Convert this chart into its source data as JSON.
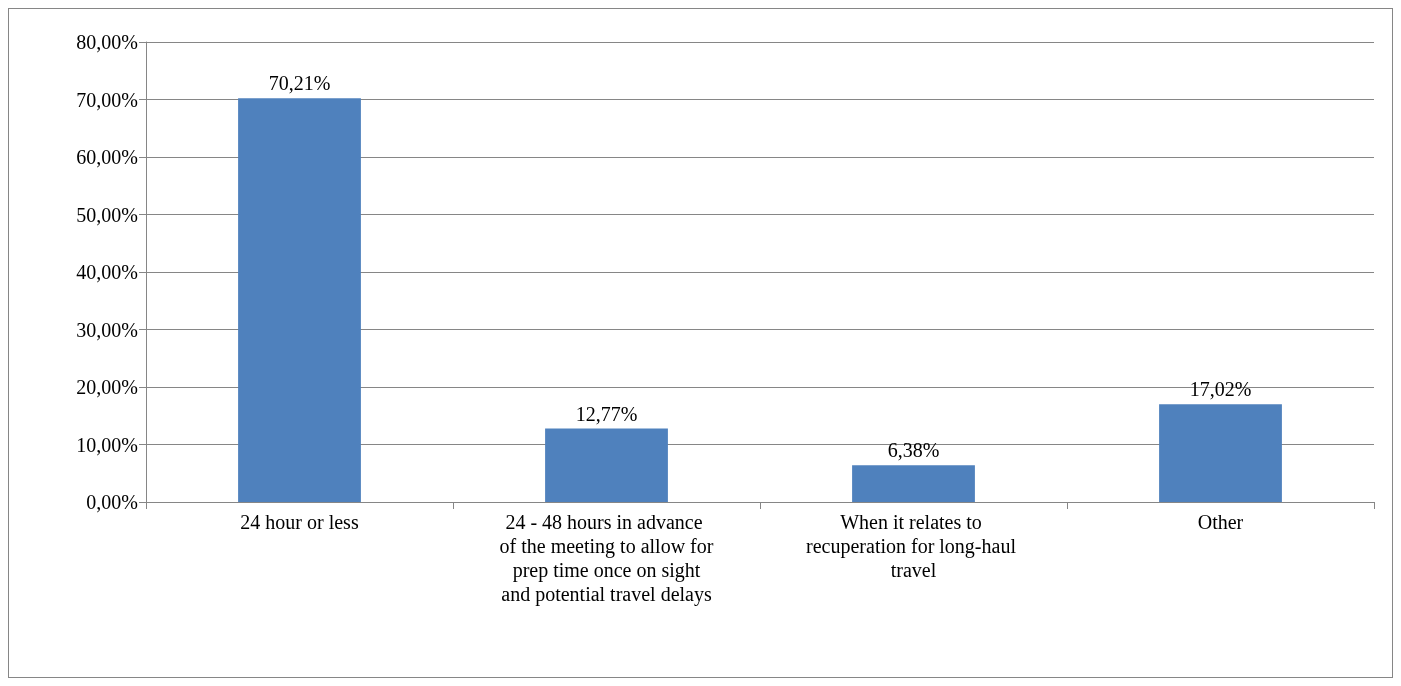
{
  "chart_data": {
    "type": "bar",
    "categories": [
      "24 hour or less",
      "24 - 48 hours in advance of the meeting to allow for prep time once on sight and potential travel delays",
      "When it relates to recuperation for long-haul travel",
      "Other"
    ],
    "values": [
      70.21,
      12.77,
      6.38,
      17.02
    ],
    "value_labels": [
      "70,21%",
      "12,77%",
      "6,38%",
      "17,02%"
    ],
    "color": "#4f81bd",
    "ylim": [
      0,
      80
    ],
    "yticks": [
      {
        "value": 0,
        "label": "0,00%"
      },
      {
        "value": 10,
        "label": "10,00%"
      },
      {
        "value": 20,
        "label": "20,00%"
      },
      {
        "value": 30,
        "label": "30,00%"
      },
      {
        "value": 40,
        "label": "40,00%"
      },
      {
        "value": 50,
        "label": "50,00%"
      },
      {
        "value": 60,
        "label": "60,00%"
      },
      {
        "value": 70,
        "label": "70,00%"
      },
      {
        "value": 80,
        "label": "80,00%"
      }
    ],
    "grid": true
  }
}
